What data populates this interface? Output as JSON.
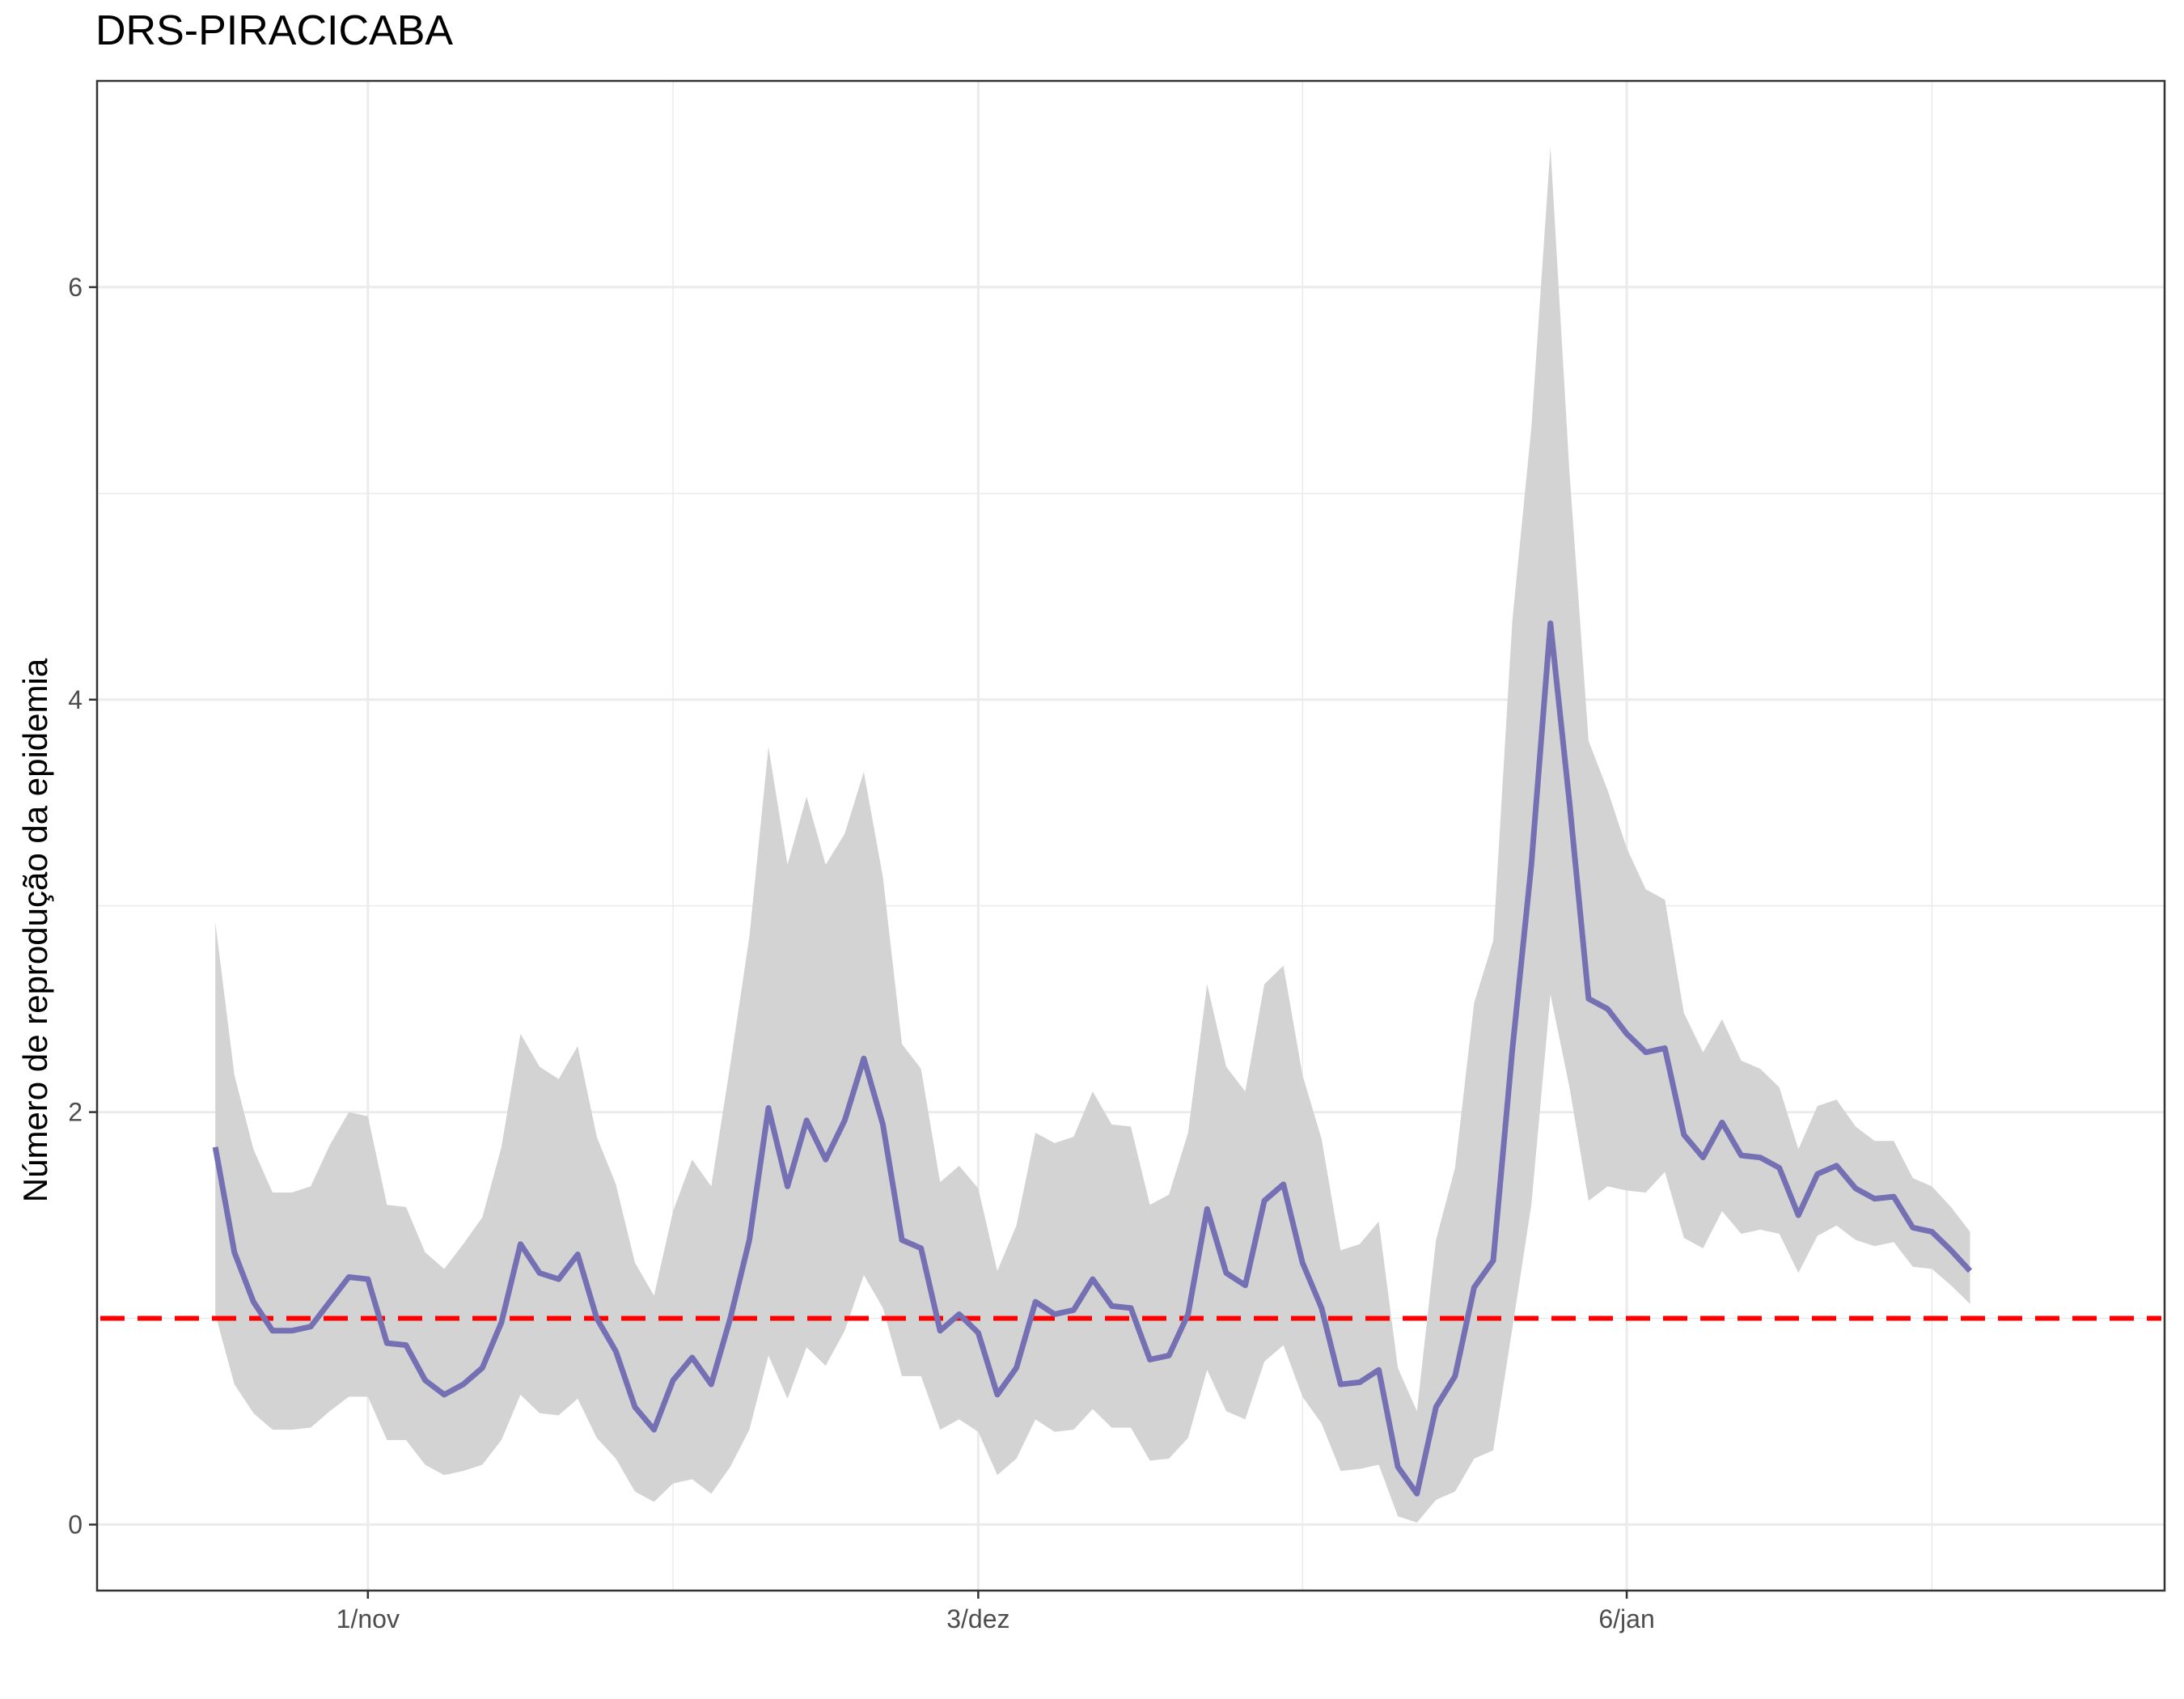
{
  "chart_data": {
    "type": "line",
    "title": "DRS-PIRACICABA",
    "xlabel": "",
    "ylabel": "Número de reprodução da epidemia",
    "x_ticks": [
      {
        "label": "1/nov",
        "day": 8
      },
      {
        "label": "3/dez",
        "day": 40
      },
      {
        "label": "6/jan",
        "day": 74
      }
    ],
    "x_minor_days": [
      24,
      57,
      90
    ],
    "xlim_days": [
      -6.2,
      102.2
    ],
    "ylim": [
      -0.32,
      7.0
    ],
    "y_ticks": [
      0,
      2,
      4,
      6
    ],
    "y_minor": [
      1,
      3,
      5
    ],
    "grid": true,
    "legend": "none",
    "reference_line": {
      "y": 1.0,
      "color": "#ff0000",
      "style": "dashed"
    },
    "line_color": "#7570b3",
    "ribbon_color": "#d3d3d3",
    "series": [
      {
        "x_start_day": 0,
        "mean": [
          1.83,
          1.32,
          1.08,
          0.94,
          0.94,
          0.96,
          1.08,
          1.2,
          1.19,
          0.88,
          0.87,
          0.7,
          0.63,
          0.68,
          0.76,
          0.98,
          1.36,
          1.22,
          1.19,
          1.31,
          1.0,
          0.84,
          0.57,
          0.46,
          0.7,
          0.81,
          0.68,
          1.0,
          1.38,
          2.02,
          1.64,
          1.96,
          1.77,
          1.96,
          2.26,
          1.94,
          1.38,
          1.34,
          0.94,
          1.02,
          0.93,
          0.63,
          0.76,
          1.08,
          1.02,
          1.04,
          1.19,
          1.06,
          1.05,
          0.8,
          0.82,
          1.02,
          1.53,
          1.22,
          1.16,
          1.57,
          1.65,
          1.27,
          1.05,
          0.68,
          0.69,
          0.75,
          0.28,
          0.15,
          0.57,
          0.72,
          1.15,
          1.28,
          2.3,
          3.2,
          4.37,
          3.5,
          2.55,
          2.5,
          2.38,
          2.29,
          2.31,
          1.89,
          1.78,
          1.95,
          1.79,
          1.78,
          1.73,
          1.5,
          1.7,
          1.74,
          1.63,
          1.58,
          1.59,
          1.44,
          1.42,
          1.33,
          1.23
        ],
        "upper": [
          2.92,
          2.18,
          1.82,
          1.61,
          1.61,
          1.64,
          1.84,
          2.0,
          1.98,
          1.55,
          1.54,
          1.32,
          1.24,
          1.36,
          1.49,
          1.83,
          2.38,
          2.22,
          2.16,
          2.32,
          1.88,
          1.65,
          1.27,
          1.11,
          1.52,
          1.77,
          1.64,
          2.23,
          2.85,
          3.77,
          3.2,
          3.53,
          3.2,
          3.35,
          3.65,
          3.14,
          2.33,
          2.21,
          1.66,
          1.74,
          1.63,
          1.23,
          1.45,
          1.9,
          1.85,
          1.88,
          2.1,
          1.94,
          1.93,
          1.55,
          1.6,
          1.9,
          2.62,
          2.22,
          2.1,
          2.62,
          2.71,
          2.18,
          1.87,
          1.33,
          1.36,
          1.47,
          0.76,
          0.55,
          1.38,
          1.73,
          2.53,
          2.83,
          4.38,
          5.32,
          6.68,
          5.1,
          3.8,
          3.56,
          3.28,
          3.08,
          3.03,
          2.48,
          2.29,
          2.45,
          2.25,
          2.21,
          2.12,
          1.82,
          2.03,
          2.06,
          1.93,
          1.86,
          1.86,
          1.68,
          1.64,
          1.54,
          1.42
        ],
        "lower": [
          1.02,
          0.68,
          0.54,
          0.46,
          0.46,
          0.47,
          0.55,
          0.62,
          0.62,
          0.41,
          0.41,
          0.29,
          0.24,
          0.26,
          0.29,
          0.41,
          0.63,
          0.54,
          0.53,
          0.61,
          0.42,
          0.32,
          0.16,
          0.11,
          0.2,
          0.22,
          0.15,
          0.28,
          0.46,
          0.82,
          0.61,
          0.86,
          0.77,
          0.94,
          1.21,
          1.05,
          0.72,
          0.72,
          0.46,
          0.51,
          0.45,
          0.24,
          0.32,
          0.51,
          0.45,
          0.46,
          0.56,
          0.47,
          0.47,
          0.31,
          0.32,
          0.42,
          0.75,
          0.55,
          0.51,
          0.79,
          0.87,
          0.62,
          0.49,
          0.26,
          0.27,
          0.29,
          0.04,
          0.01,
          0.12,
          0.16,
          0.32,
          0.36,
          0.95,
          1.55,
          2.57,
          2.12,
          1.57,
          1.64,
          1.62,
          1.61,
          1.71,
          1.39,
          1.34,
          1.52,
          1.41,
          1.43,
          1.41,
          1.22,
          1.4,
          1.45,
          1.38,
          1.35,
          1.37,
          1.25,
          1.24,
          1.16,
          1.07
        ]
      }
    ]
  }
}
